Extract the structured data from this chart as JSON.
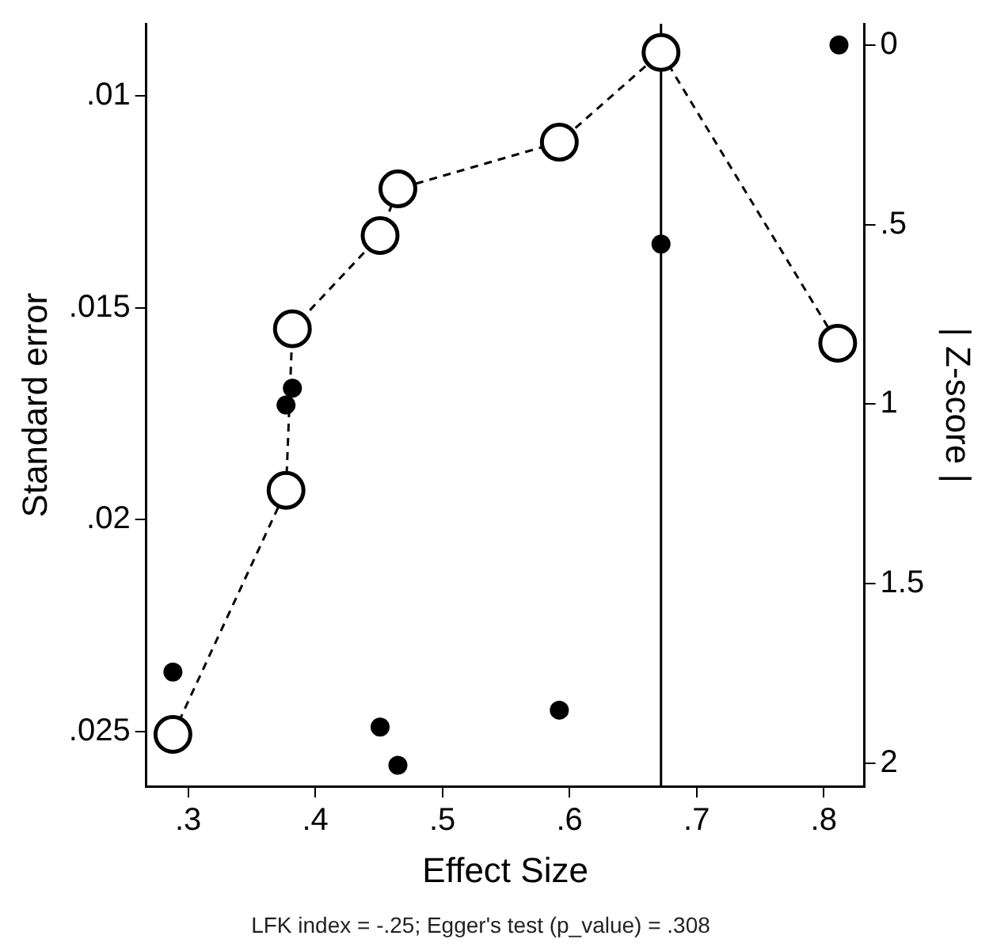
{
  "chart_data": {
    "type": "scatter",
    "xlabel": "Effect Size",
    "ylabel": "Standard error",
    "y2label": "| Z-score |",
    "annotations": [
      "LFK index = -.25; Egger's test (p_value) = .308"
    ],
    "xlim": [
      0.267,
      0.832
    ],
    "xticks": [
      {
        "value": 0.3,
        "label": ".3"
      },
      {
        "value": 0.4,
        "label": ".4"
      },
      {
        "value": 0.5,
        "label": ".5"
      },
      {
        "value": 0.6,
        "label": ".6"
      },
      {
        "value": 0.7,
        "label": ".7"
      },
      {
        "value": 0.8,
        "label": ".8"
      }
    ],
    "ylim": [
      0.0263,
      0.0083
    ],
    "yticks": [
      {
        "value": 0.01,
        "label": ".01"
      },
      {
        "value": 0.015,
        "label": ".015"
      },
      {
        "value": 0.02,
        "label": ".02"
      },
      {
        "value": 0.025,
        "label": ".025"
      }
    ],
    "y2lim": [
      2.065,
      -0.06
    ],
    "y2ticks": [
      0,
      {
        "value": 0.5,
        "label": ".5"
      },
      1,
      1.5,
      2
    ],
    "grid": false,
    "legend": false,
    "ref_lines": [
      {
        "axis": "x",
        "value": 0.672,
        "color": "#000000"
      }
    ],
    "series": [
      {
        "color": "#000000",
        "marker": "circle",
        "x": [
          0.812,
          0.672,
          0.382,
          0.377,
          0.288,
          0.451,
          0.465,
          0.592
        ],
        "values": [
          0.0088,
          0.0135,
          0.0169,
          0.0173,
          0.0236,
          0.0249,
          0.0258,
          0.0245
        ]
      },
      {
        "type": "line",
        "axis": "y2",
        "color": "#000000",
        "marker": "circle",
        "line_style": "dashed",
        "x": [
          0.288,
          0.377,
          0.382,
          0.451,
          0.465,
          0.592,
          0.672,
          0.811
        ],
        "values": [
          1.92,
          1.24,
          0.79,
          0.53,
          0.4,
          0.27,
          0.02,
          0.83
        ]
      }
    ]
  }
}
